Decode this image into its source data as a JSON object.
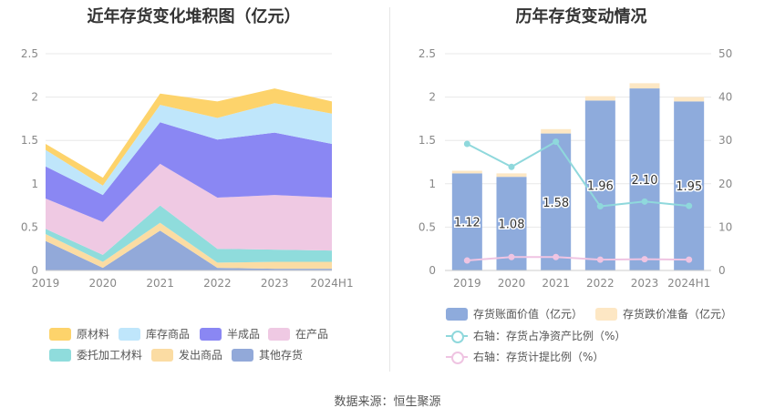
{
  "footer": "数据来源：恒生聚源",
  "chart_data": [
    {
      "type": "area",
      "stacked": true,
      "title": "近年存货变化堆积图（亿元）",
      "categories": [
        "2019",
        "2020",
        "2021",
        "2022",
        "2023",
        "2024H1"
      ],
      "ylim": [
        0,
        2.5
      ],
      "yticks": [
        "0",
        "0.5",
        "1",
        "1.5",
        "2",
        "2.5"
      ],
      "grid": true,
      "legend_position": "bottom",
      "series": [
        {
          "name": "其他存货",
          "color": "#92a9d9",
          "values": [
            0.34,
            0.03,
            0.46,
            0.03,
            0.02,
            0.02
          ]
        },
        {
          "name": "发出商品",
          "color": "#fbdca3",
          "values": [
            0.08,
            0.07,
            0.09,
            0.06,
            0.08,
            0.08
          ]
        },
        {
          "name": "委托加工材料",
          "color": "#8fdcdc",
          "values": [
            0.06,
            0.08,
            0.2,
            0.16,
            0.14,
            0.13
          ]
        },
        {
          "name": "在产品",
          "color": "#efc9e3",
          "values": [
            0.35,
            0.38,
            0.48,
            0.59,
            0.63,
            0.61
          ]
        },
        {
          "name": "半成品",
          "color": "#8a87f3",
          "values": [
            0.37,
            0.31,
            0.48,
            0.67,
            0.72,
            0.62
          ]
        },
        {
          "name": "库存商品",
          "color": "#bfe6fb",
          "values": [
            0.19,
            0.11,
            0.2,
            0.25,
            0.34,
            0.35
          ]
        },
        {
          "name": "原材料",
          "color": "#fdd36b",
          "values": [
            0.07,
            0.09,
            0.13,
            0.19,
            0.17,
            0.14
          ]
        }
      ]
    },
    {
      "type": "bar",
      "stacked": true,
      "title": "历年存货变动情况",
      "categories": [
        "2019",
        "2020",
        "2021",
        "2022",
        "2023",
        "2024H1"
      ],
      "ylim": [
        0,
        2.5
      ],
      "yticks": [
        "0",
        "0.5",
        "1",
        "1.5",
        "2",
        "2.5"
      ],
      "y2lim": [
        0,
        50
      ],
      "y2ticks": [
        "0",
        "10",
        "20",
        "30",
        "40",
        "50"
      ],
      "grid": true,
      "legend_position": "bottom",
      "series": [
        {
          "name": "存货账面价值（亿元）",
          "color": "#8eabdc",
          "values": [
            1.12,
            1.08,
            1.58,
            1.96,
            2.1,
            1.95
          ],
          "labels": [
            "1.12",
            "1.08",
            "1.58",
            "1.96",
            "2.10",
            "1.95"
          ]
        },
        {
          "name": "存货跌价准备（亿元）",
          "color": "#fde7c4",
          "values": [
            0.03,
            0.04,
            0.05,
            0.05,
            0.06,
            0.05
          ]
        }
      ],
      "line_series": [
        {
          "name": "右轴：存货占净资产比例（%）",
          "color": "#8fd8dc",
          "axis": "right",
          "values": [
            29.2,
            23.9,
            29.7,
            14.8,
            15.9,
            14.9
          ]
        },
        {
          "name": "右轴：存货计提比例（%）",
          "color": "#efc4e2",
          "axis": "right",
          "values": [
            2.3,
            3.1,
            3.1,
            2.5,
            2.6,
            2.5
          ]
        }
      ]
    }
  ]
}
